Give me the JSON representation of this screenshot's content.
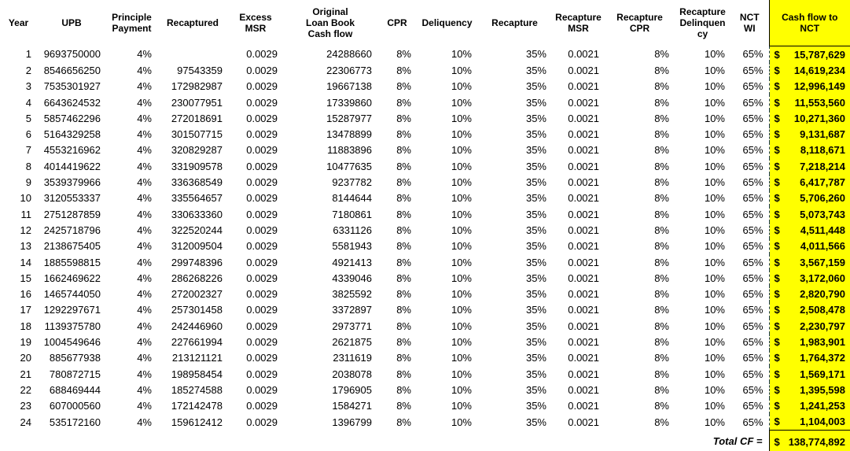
{
  "colors": {
    "highlight": "#FFFF00"
  },
  "table": {
    "currency": "$",
    "column_keys": [
      "year",
      "upb",
      "principle-payment",
      "recaptured",
      "excess-msr",
      "original-loan-book-cash-flow",
      "cpr",
      "deliquency",
      "recapture",
      "recapture-msr",
      "recapture-cpr",
      "recapture-delinquency",
      "nct-wi",
      "cash-flow-to-nct"
    ],
    "headers": [
      "Year",
      "UPB",
      "Principle\nPayment",
      "Recaptured",
      "Excess MSR",
      "Original\nLoan Book\nCash flow",
      "CPR",
      "Deliquency",
      "Recapture",
      "Recapture\nMSR",
      "Recapture\nCPR",
      "Recapture\nDelinquen\ncy",
      "NCT\nWI",
      "Cash flow to\nNCT"
    ],
    "rows": [
      [
        "1",
        "9693750000",
        "4%",
        "",
        "0.0029",
        "24288660",
        "8%",
        "10%",
        "35%",
        "0.0021",
        "8%",
        "10%",
        "65%",
        "15,787,629"
      ],
      [
        "2",
        "8546656250",
        "4%",
        "97543359",
        "0.0029",
        "22306773",
        "8%",
        "10%",
        "35%",
        "0.0021",
        "8%",
        "10%",
        "65%",
        "14,619,234"
      ],
      [
        "3",
        "7535301927",
        "4%",
        "172982987",
        "0.0029",
        "19667138",
        "8%",
        "10%",
        "35%",
        "0.0021",
        "8%",
        "10%",
        "65%",
        "12,996,149"
      ],
      [
        "4",
        "6643624532",
        "4%",
        "230077951",
        "0.0029",
        "17339860",
        "8%",
        "10%",
        "35%",
        "0.0021",
        "8%",
        "10%",
        "65%",
        "11,553,560"
      ],
      [
        "5",
        "5857462296",
        "4%",
        "272018691",
        "0.0029",
        "15287977",
        "8%",
        "10%",
        "35%",
        "0.0021",
        "8%",
        "10%",
        "65%",
        "10,271,360"
      ],
      [
        "6",
        "5164329258",
        "4%",
        "301507715",
        "0.0029",
        "13478899",
        "8%",
        "10%",
        "35%",
        "0.0021",
        "8%",
        "10%",
        "65%",
        "9,131,687"
      ],
      [
        "7",
        "4553216962",
        "4%",
        "320829287",
        "0.0029",
        "11883896",
        "8%",
        "10%",
        "35%",
        "0.0021",
        "8%",
        "10%",
        "65%",
        "8,118,671"
      ],
      [
        "8",
        "4014419622",
        "4%",
        "331909578",
        "0.0029",
        "10477635",
        "8%",
        "10%",
        "35%",
        "0.0021",
        "8%",
        "10%",
        "65%",
        "7,218,214"
      ],
      [
        "9",
        "3539379966",
        "4%",
        "336368549",
        "0.0029",
        "9237782",
        "8%",
        "10%",
        "35%",
        "0.0021",
        "8%",
        "10%",
        "65%",
        "6,417,787"
      ],
      [
        "10",
        "3120553337",
        "4%",
        "335564657",
        "0.0029",
        "8144644",
        "8%",
        "10%",
        "35%",
        "0.0021",
        "8%",
        "10%",
        "65%",
        "5,706,260"
      ],
      [
        "11",
        "2751287859",
        "4%",
        "330633360",
        "0.0029",
        "7180861",
        "8%",
        "10%",
        "35%",
        "0.0021",
        "8%",
        "10%",
        "65%",
        "5,073,743"
      ],
      [
        "12",
        "2425718796",
        "4%",
        "322520244",
        "0.0029",
        "6331126",
        "8%",
        "10%",
        "35%",
        "0.0021",
        "8%",
        "10%",
        "65%",
        "4,511,448"
      ],
      [
        "13",
        "2138675405",
        "4%",
        "312009504",
        "0.0029",
        "5581943",
        "8%",
        "10%",
        "35%",
        "0.0021",
        "8%",
        "10%",
        "65%",
        "4,011,566"
      ],
      [
        "14",
        "1885598815",
        "4%",
        "299748396",
        "0.0029",
        "4921413",
        "8%",
        "10%",
        "35%",
        "0.0021",
        "8%",
        "10%",
        "65%",
        "3,567,159"
      ],
      [
        "15",
        "1662469622",
        "4%",
        "286268226",
        "0.0029",
        "4339046",
        "8%",
        "10%",
        "35%",
        "0.0021",
        "8%",
        "10%",
        "65%",
        "3,172,060"
      ],
      [
        "16",
        "1465744050",
        "4%",
        "272002327",
        "0.0029",
        "3825592",
        "8%",
        "10%",
        "35%",
        "0.0021",
        "8%",
        "10%",
        "65%",
        "2,820,790"
      ],
      [
        "17",
        "1292297671",
        "4%",
        "257301458",
        "0.0029",
        "3372897",
        "8%",
        "10%",
        "35%",
        "0.0021",
        "8%",
        "10%",
        "65%",
        "2,508,478"
      ],
      [
        "18",
        "1139375780",
        "4%",
        "242446960",
        "0.0029",
        "2973771",
        "8%",
        "10%",
        "35%",
        "0.0021",
        "8%",
        "10%",
        "65%",
        "2,230,797"
      ],
      [
        "19",
        "1004549646",
        "4%",
        "227661994",
        "0.0029",
        "2621875",
        "8%",
        "10%",
        "35%",
        "0.0021",
        "8%",
        "10%",
        "65%",
        "1,983,901"
      ],
      [
        "20",
        "885677938",
        "4%",
        "213121121",
        "0.0029",
        "2311619",
        "8%",
        "10%",
        "35%",
        "0.0021",
        "8%",
        "10%",
        "65%",
        "1,764,372"
      ],
      [
        "21",
        "780872715",
        "4%",
        "198958454",
        "0.0029",
        "2038078",
        "8%",
        "10%",
        "35%",
        "0.0021",
        "8%",
        "10%",
        "65%",
        "1,569,171"
      ],
      [
        "22",
        "688469444",
        "4%",
        "185274588",
        "0.0029",
        "1796905",
        "8%",
        "10%",
        "35%",
        "0.0021",
        "8%",
        "10%",
        "65%",
        "1,395,598"
      ],
      [
        "23",
        "607000560",
        "4%",
        "172142478",
        "0.0029",
        "1584271",
        "8%",
        "10%",
        "35%",
        "0.0021",
        "8%",
        "10%",
        "65%",
        "1,241,253"
      ],
      [
        "24",
        "535172160",
        "4%",
        "159612412",
        "0.0029",
        "1396799",
        "8%",
        "10%",
        "35%",
        "0.0021",
        "8%",
        "10%",
        "65%",
        "1,104,003"
      ]
    ],
    "total": {
      "label": "Total CF =",
      "currency": "$",
      "value": "138,774,892"
    }
  }
}
